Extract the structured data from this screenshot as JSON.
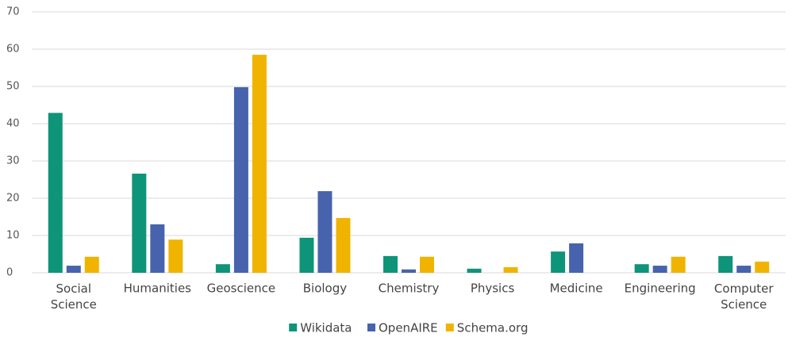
{
  "chart_data": {
    "type": "bar",
    "categories": [
      "Social Science",
      "Humanities",
      "Geoscience",
      "Biology",
      "Chemistry",
      "Physics",
      "Medicine",
      "Engineering",
      "Computer Science"
    ],
    "series": [
      {
        "name": "Wikidata",
        "color": "#0e9479",
        "values": [
          42.9,
          26.6,
          2.3,
          9.4,
          4.5,
          1.1,
          5.7,
          2.3,
          4.5
        ]
      },
      {
        "name": "OpenAIRE",
        "color": "#4763ad",
        "values": [
          1.9,
          13.0,
          49.8,
          21.9,
          0.9,
          0,
          7.9,
          1.9,
          1.9
        ]
      },
      {
        "name": "Schema.org",
        "color": "#f0b400",
        "values": [
          4.3,
          8.9,
          58.5,
          14.7,
          4.3,
          1.5,
          0,
          4.3,
          3.0
        ]
      }
    ],
    "ylim": [
      0,
      70
    ],
    "yticks": [
      0,
      10,
      20,
      30,
      40,
      50,
      60,
      70
    ],
    "grid": true,
    "legend": "bottom"
  }
}
